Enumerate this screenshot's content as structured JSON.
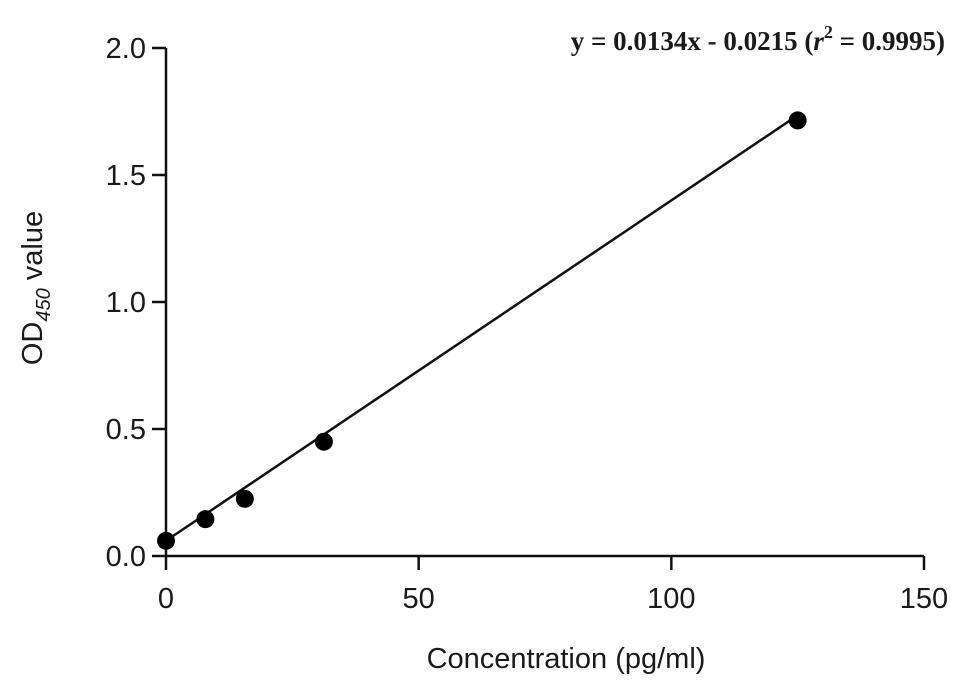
{
  "chart_data": {
    "type": "scatter",
    "title": "",
    "xlabel": "Concentration (pg/ml)",
    "ylabel": {
      "main": "OD",
      "subscript": "450",
      "suffix": " value"
    },
    "xlim": [
      0,
      150
    ],
    "ylim": [
      0,
      2.0
    ],
    "x_ticks": [
      0,
      50,
      100,
      150
    ],
    "x_tick_labels": [
      "0",
      "50",
      "100",
      "150"
    ],
    "y_ticks": [
      0,
      0.5,
      1.0,
      1.5,
      2.0
    ],
    "y_tick_labels": [
      "0.0",
      "0.5",
      "1.0",
      "1.5",
      "2.0"
    ],
    "grid": false,
    "series": [
      {
        "points": [
          {
            "x": 0,
            "y": 0.06
          },
          {
            "x": 7.8,
            "y": 0.145
          },
          {
            "x": 15.6,
            "y": 0.225
          },
          {
            "x": 31.25,
            "y": 0.45
          },
          {
            "x": 125,
            "y": 1.715
          }
        ],
        "fit": {
          "slope": 0.0134,
          "intercept": -0.0215
        }
      }
    ],
    "annotation": {
      "prefix": "y = 0.0134x - 0.0215 (",
      "r_symbol": "r",
      "exponent": "2",
      "suffix": " = 0.9995)"
    }
  }
}
